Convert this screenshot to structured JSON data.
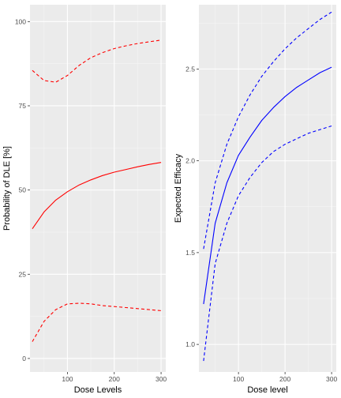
{
  "chart_data": [
    {
      "type": "line",
      "xlabel": "Dose Levels",
      "ylabel": "Probability of DLE [%]",
      "xlim": [
        20,
        310
      ],
      "ylim": [
        -4,
        105
      ],
      "x_ticks": [
        100,
        200,
        300
      ],
      "y_ticks": [
        0,
        25,
        50,
        75,
        100
      ],
      "x_tick_labels": [
        "100",
        "200",
        "300"
      ],
      "y_tick_labels": [
        "0",
        "25",
        "50",
        "75",
        "100"
      ],
      "grid": true,
      "colors": {
        "line": "#ff0000"
      },
      "x": [
        25,
        50,
        75,
        100,
        125,
        150,
        175,
        200,
        225,
        250,
        275,
        300
      ],
      "series": [
        {
          "role": "estimate",
          "style": "solid",
          "values": [
            38.5,
            43.5,
            47.0,
            49.5,
            51.5,
            53.0,
            54.3,
            55.3,
            56.1,
            56.9,
            57.6,
            58.2
          ]
        },
        {
          "role": "upper",
          "style": "dashed",
          "values": [
            85.5,
            82.5,
            82.0,
            84.0,
            87.0,
            89.3,
            90.8,
            92.0,
            92.8,
            93.5,
            94.0,
            94.5
          ]
        },
        {
          "role": "lower",
          "style": "dashed",
          "values": [
            5.0,
            11.0,
            14.5,
            16.2,
            16.4,
            16.2,
            15.7,
            15.4,
            15.1,
            14.8,
            14.5,
            14.2
          ]
        }
      ]
    },
    {
      "type": "line",
      "xlabel": "Dose level",
      "ylabel": "Expected Efficacy",
      "xlim": [
        15,
        310
      ],
      "ylim": [
        0.85,
        2.85
      ],
      "x_ticks": [
        100,
        200,
        300
      ],
      "y_ticks": [
        1.0,
        1.5,
        2.0,
        2.5
      ],
      "x_tick_labels": [
        "100",
        "200",
        "300"
      ],
      "y_tick_labels": [
        "1.0",
        "1.5",
        "2.0",
        "2.5"
      ],
      "grid": true,
      "colors": {
        "line": "#0000ff"
      },
      "x": [
        25,
        50,
        75,
        100,
        125,
        150,
        175,
        200,
        225,
        250,
        275,
        300
      ],
      "series": [
        {
          "role": "estimate",
          "style": "solid",
          "values": [
            1.22,
            1.66,
            1.88,
            2.03,
            2.13,
            2.22,
            2.29,
            2.35,
            2.4,
            2.44,
            2.48,
            2.51
          ]
        },
        {
          "role": "upper",
          "style": "dashed",
          "values": [
            1.52,
            1.88,
            2.09,
            2.24,
            2.36,
            2.46,
            2.54,
            2.61,
            2.67,
            2.72,
            2.77,
            2.81
          ]
        },
        {
          "role": "lower",
          "style": "dashed",
          "values": [
            0.91,
            1.44,
            1.66,
            1.81,
            1.91,
            1.99,
            2.05,
            2.09,
            2.12,
            2.15,
            2.17,
            2.19
          ]
        }
      ]
    }
  ]
}
